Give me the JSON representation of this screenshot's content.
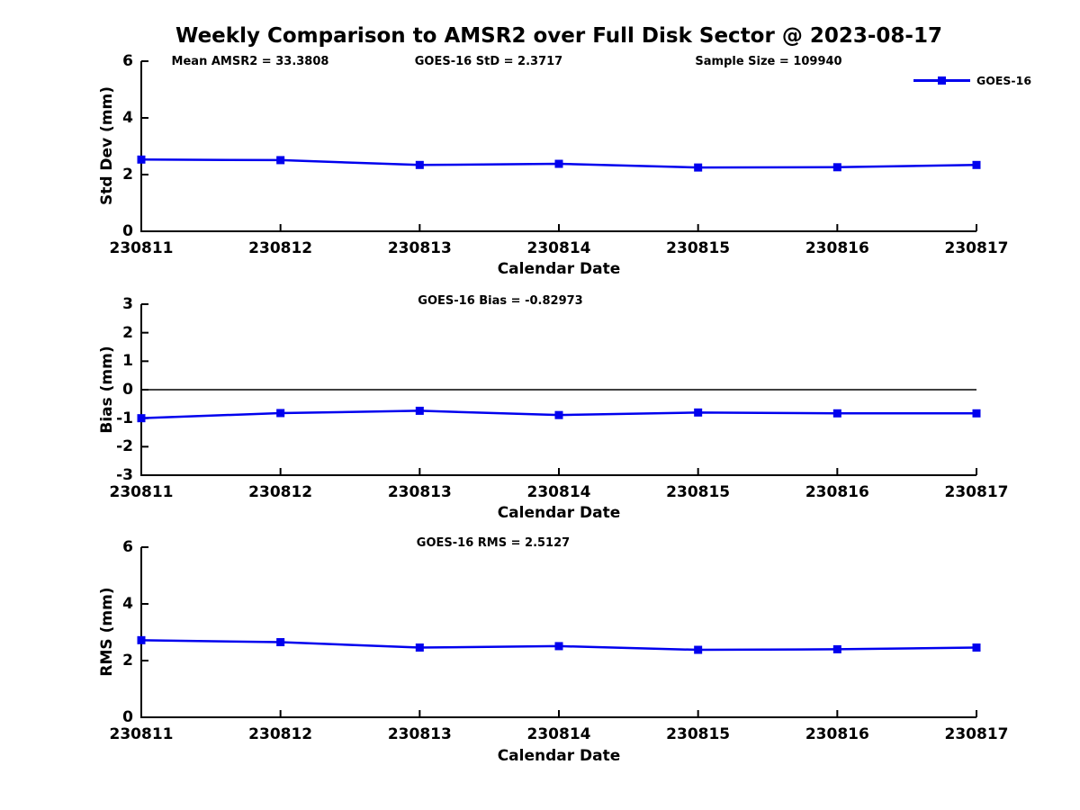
{
  "title": "Weekly Comparison to AMSR2 over Full Disk Sector @ 2023-08-17",
  "legend": {
    "label": "GOES-16",
    "color": "#0000EE",
    "position": "top-right"
  },
  "colors": {
    "line": "#0000EE",
    "axis": "#000000",
    "background": "#ffffff"
  },
  "chart_data": [
    {
      "type": "line",
      "title": "",
      "annotations": [
        "Mean AMSR2 = 33.3808",
        "GOES-16 StD = 2.3717",
        "Sample Size = 109940"
      ],
      "xlabel": "Calendar Date",
      "ylabel": "Std Dev (mm)",
      "ylim": [
        0,
        6
      ],
      "yticks": [
        0,
        2,
        4,
        6
      ],
      "grid": false,
      "zero_line": false,
      "categories": [
        "230811",
        "230812",
        "230813",
        "230814",
        "230815",
        "230816",
        "230817"
      ],
      "series": [
        {
          "name": "GOES-16",
          "values": [
            2.53,
            2.51,
            2.34,
            2.38,
            2.25,
            2.26,
            2.34
          ]
        }
      ]
    },
    {
      "type": "line",
      "title": "GOES-16 Bias  = -0.82973",
      "annotations": [],
      "xlabel": "Calendar Date",
      "ylabel": "Bias (mm)",
      "ylim": [
        -3,
        3
      ],
      "yticks": [
        -3,
        -2,
        -1,
        0,
        1,
        2,
        3
      ],
      "grid": false,
      "zero_line": true,
      "categories": [
        "230811",
        "230812",
        "230813",
        "230814",
        "230815",
        "230816",
        "230817"
      ],
      "series": [
        {
          "name": "GOES-16",
          "values": [
            -1.0,
            -0.82,
            -0.74,
            -0.89,
            -0.8,
            -0.83,
            -0.83
          ]
        }
      ]
    },
    {
      "type": "line",
      "title": "GOES-16 RMS = 2.5127",
      "annotations": [],
      "xlabel": "Calendar Date",
      "ylabel": "RMS (mm)",
      "ylim": [
        0,
        6
      ],
      "yticks": [
        0,
        2,
        4,
        6
      ],
      "grid": false,
      "zero_line": false,
      "categories": [
        "230811",
        "230812",
        "230813",
        "230814",
        "230815",
        "230816",
        "230817"
      ],
      "series": [
        {
          "name": "GOES-16",
          "values": [
            2.72,
            2.65,
            2.46,
            2.51,
            2.38,
            2.4,
            2.46
          ]
        }
      ]
    }
  ]
}
